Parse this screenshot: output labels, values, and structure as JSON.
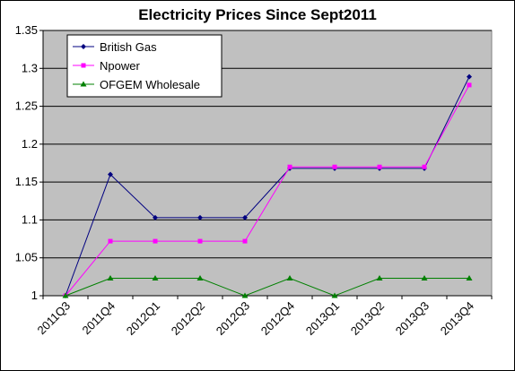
{
  "chart_data": {
    "type": "line",
    "title": "Electricity Prices Since Sept2011",
    "xlabel": "",
    "ylabel": "",
    "categories": [
      "2011Q3",
      "2011Q4",
      "2012Q1",
      "2012Q2",
      "2012Q3",
      "2012Q4",
      "2013Q1",
      "2013Q2",
      "2013Q3",
      "2013Q4"
    ],
    "ylim": [
      1,
      1.35
    ],
    "yticks": [
      "1",
      "1.05",
      "1.1",
      "1.15",
      "1.2",
      "1.25",
      "1.3",
      "1.35"
    ],
    "grid": true,
    "legend_position": "top-left",
    "plot_background": "#c0c0c0",
    "series": [
      {
        "name": "British Gas",
        "color": "#000080",
        "marker": "diamond",
        "values": [
          1.0,
          1.16,
          1.103,
          1.103,
          1.103,
          1.168,
          1.168,
          1.168,
          1.168,
          1.289
        ]
      },
      {
        "name": "Npower",
        "color": "#ff00ff",
        "marker": "square",
        "values": [
          1.0,
          1.072,
          1.072,
          1.072,
          1.072,
          1.17,
          1.17,
          1.17,
          1.17,
          1.278
        ]
      },
      {
        "name": "OFGEM Wholesale",
        "color": "#008000",
        "marker": "triangle",
        "values": [
          1.0,
          1.023,
          1.023,
          1.023,
          1.0,
          1.023,
          1.0,
          1.023,
          1.023,
          1.023
        ]
      }
    ]
  }
}
